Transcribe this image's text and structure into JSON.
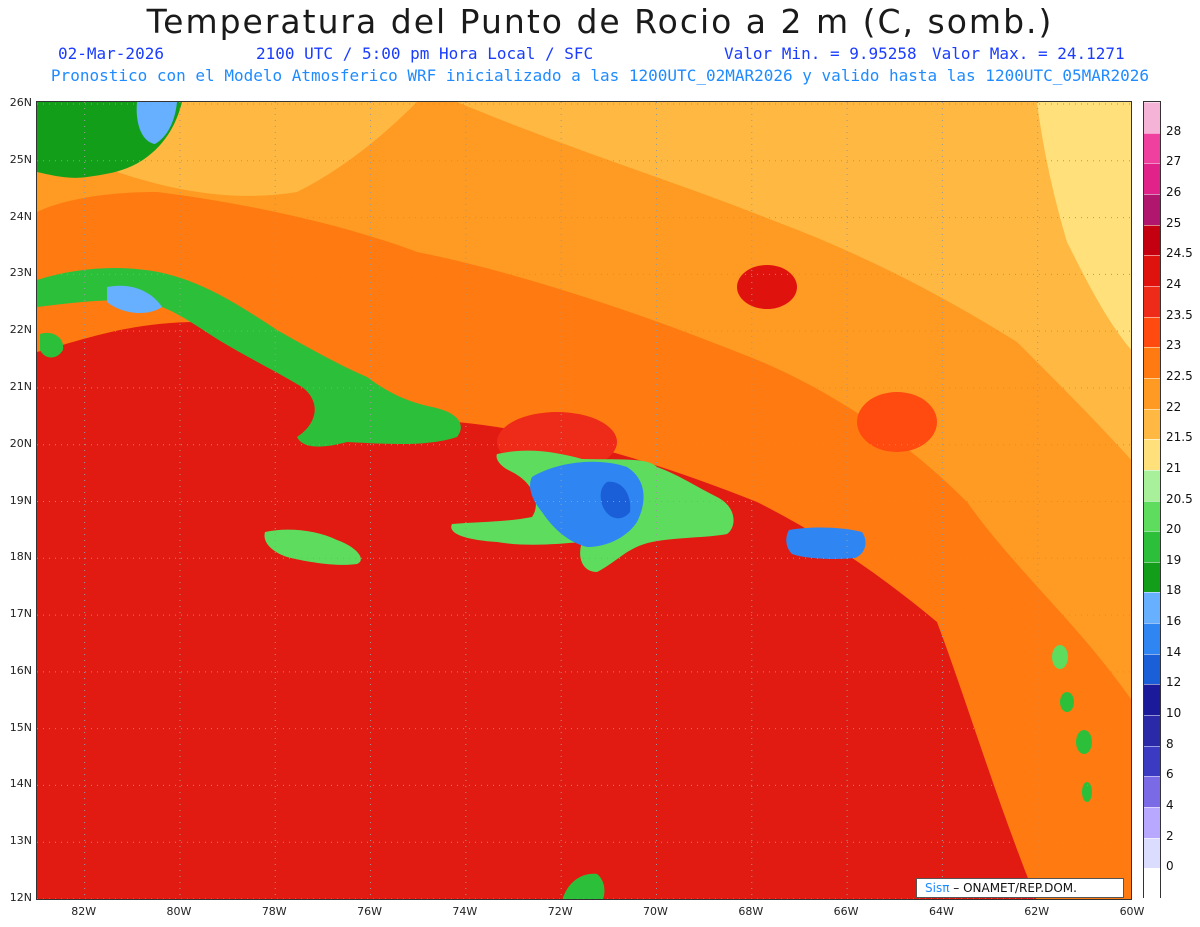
{
  "title": "Temperatura del Punto de Rocio a 2 m (C, somb.)",
  "date": "02-Mar-2026",
  "time_info": "2100 UTC / 5:00 pm Hora Local / SFC",
  "min_value": "Valor Min. = 9.95258",
  "max_value": "Valor Max. = 24.1271",
  "forecast_info": "Pronostico con el Modelo Atmosferico WRF inicializado a las 1200UTC_02MAR2026 y valido hasta las  1200UTC_05MAR2026",
  "lat_labels": [
    "26N",
    "25N",
    "24N",
    "23N",
    "22N",
    "21N",
    "20N",
    "19N",
    "18N",
    "17N",
    "16N",
    "15N",
    "14N",
    "13N",
    "12N"
  ],
  "lon_labels": [
    "82W",
    "80W",
    "78W",
    "76W",
    "74W",
    "72W",
    "70W",
    "68W",
    "66W",
    "64W",
    "62W",
    "60W"
  ],
  "colorbar": {
    "labels": [
      "28",
      "27",
      "26",
      "25",
      "24.5",
      "24",
      "23.5",
      "23",
      "22.5",
      "22",
      "21.5",
      "21",
      "20.5",
      "20",
      "19",
      "18",
      "16",
      "14",
      "12",
      "10",
      "8",
      "6",
      "4",
      "2",
      "0"
    ],
    "colors": [
      "#f5b3d8",
      "#ef3f9f",
      "#e0228a",
      "#b0166e",
      "#c40010",
      "#e0120e",
      "#ee2a18",
      "#ff4a10",
      "#ff7a10",
      "#ff9a22",
      "#ffb841",
      "#ffe07a",
      "#a8f09a",
      "#5edc5e",
      "#2cc03a",
      "#139e1a",
      "#66b0ff",
      "#2f86f2",
      "#1a5fd8",
      "#1a1a9a",
      "#2a2aa8",
      "#3a3ac2",
      "#7a6ae6",
      "#b8a8ff",
      "#dcdcff",
      "#ffffff"
    ]
  },
  "credit": {
    "brand": "Sisπ",
    "org": " – ONAMET/REP.DOM."
  },
  "map": {
    "projection": "lat-lon",
    "lat_range": [
      12,
      26
    ],
    "lon_range": [
      -83,
      -60
    ],
    "background_color": "#e11b12",
    "regions": [
      {
        "name": "north-ocean",
        "color": "#ff9a22"
      },
      {
        "name": "east-ocean",
        "color": "#ff8a20"
      },
      {
        "name": "cuba",
        "color": "#2cc03a"
      },
      {
        "name": "hispaniola",
        "color": "#2f86f2"
      },
      {
        "name": "jamaica",
        "color": "#5edc5e"
      },
      {
        "name": "puerto-rico",
        "color": "#2f86f2"
      },
      {
        "name": "florida",
        "color": "#139e1a"
      }
    ]
  }
}
